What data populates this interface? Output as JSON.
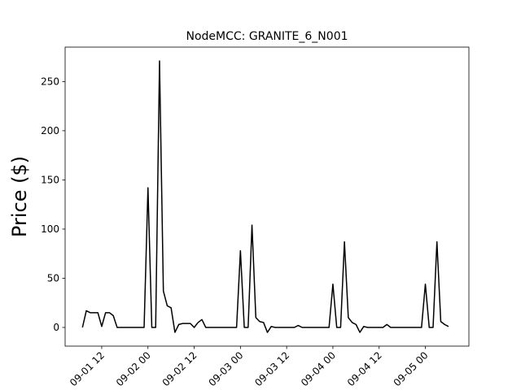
{
  "chart_data": {
    "type": "line",
    "title": "NodeMCC: GRANITE_6_N001",
    "y_label": "Price ($)",
    "x": [
      7,
      8,
      9,
      10,
      11,
      12,
      13,
      14,
      15,
      16,
      17,
      18,
      19,
      20,
      21,
      22,
      23,
      24,
      25,
      26,
      27,
      28,
      29,
      30,
      31,
      32,
      33,
      34,
      35,
      36,
      37,
      38,
      39,
      40,
      41,
      42,
      43,
      44,
      45,
      46,
      47,
      48,
      49,
      50,
      51,
      52,
      53,
      54,
      55,
      56,
      57,
      58,
      59,
      60,
      61,
      62,
      63,
      64,
      65,
      66,
      67,
      68,
      69,
      70,
      71,
      72,
      73,
      74,
      75,
      76,
      77,
      78,
      79,
      80,
      81,
      82,
      83,
      84,
      85,
      86,
      87,
      88,
      89,
      90,
      91,
      92,
      93,
      94,
      95,
      96,
      97,
      98,
      99,
      100,
      101,
      102
    ],
    "values": [
      0,
      17,
      15,
      15,
      15,
      1,
      15,
      15,
      12,
      0,
      0,
      0,
      0,
      0,
      0,
      0,
      0,
      142,
      0,
      0,
      271,
      37,
      22,
      20,
      -5,
      3,
      4,
      4,
      4,
      0,
      5,
      8,
      0,
      0,
      0,
      0,
      0,
      0,
      0,
      0,
      0,
      78,
      0,
      0,
      104,
      10,
      6,
      5,
      -5,
      1,
      0,
      0,
      0,
      0,
      0,
      0,
      2,
      0,
      0,
      0,
      0,
      0,
      0,
      0,
      0,
      44,
      0,
      0,
      87,
      10,
      5,
      3,
      -5,
      1,
      0,
      0,
      0,
      0,
      0,
      3,
      0,
      0,
      0,
      0,
      0,
      0,
      0,
      0,
      0,
      44,
      0,
      0,
      87,
      6,
      3,
      1
    ],
    "color": "#000000",
    "xlim": [
      2.5,
      107.3
    ],
    "xticks": [
      {
        "value": 12,
        "label": "09-01 12"
      },
      {
        "value": 24,
        "label": "09-02 00"
      },
      {
        "value": 36,
        "label": "09-02 12"
      },
      {
        "value": 48,
        "label": "09-03 00"
      },
      {
        "value": 60,
        "label": "09-03 12"
      },
      {
        "value": 72,
        "label": "09-04 00"
      },
      {
        "value": 84,
        "label": "09-04 12"
      },
      {
        "value": 96,
        "label": "09-05 00"
      }
    ],
    "ylim": [
      -19,
      285
    ],
    "yticks": [
      0,
      50,
      100,
      150,
      200,
      250
    ]
  }
}
